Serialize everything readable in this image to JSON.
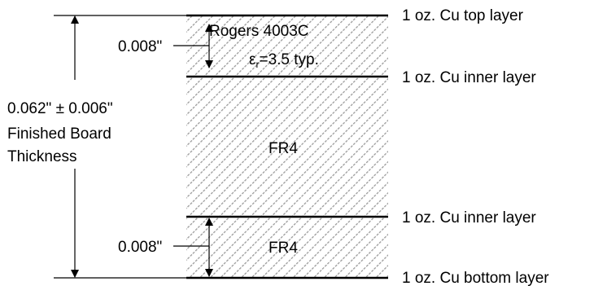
{
  "colors": {
    "ink": "#000000",
    "hatch": "#9a9a9a",
    "background": "#ffffff"
  },
  "layers": {
    "top": "1 oz. Cu top layer",
    "inner1": "1 oz. Cu inner layer",
    "inner2": "1 oz. Cu inner layer",
    "bottom": "1 oz. Cu bottom layer"
  },
  "materials": {
    "top_name": "Rogers 4003C",
    "top_er_symbol": "ε",
    "top_er_subscript": "r",
    "top_er_value": "=3.5 typ.",
    "core_name": "FR4",
    "bottom_name": "FR4"
  },
  "dimensions": {
    "top_thickness": "0.008\"",
    "bottom_thickness": "0.008\"",
    "total_line1": "0.062\" ± 0.006\"",
    "total_line2": "Finished Board",
    "total_line3": "Thickness"
  }
}
